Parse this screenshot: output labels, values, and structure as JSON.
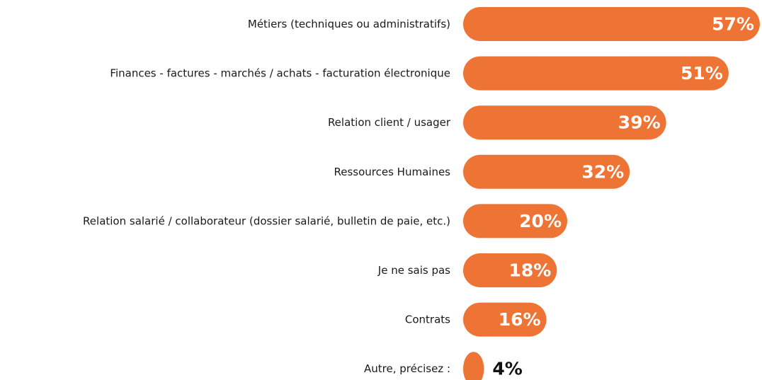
{
  "chart_data": {
    "type": "bar",
    "orientation": "horizontal",
    "categories": [
      "Métiers (techniques ou administratifs)",
      "Finances - factures - marchés / achats - facturation électronique",
      "Relation client / usager",
      "Ressources Humaines",
      "Relation salarié / collaborateur (dossier salarié, bulletin de paie, etc.)",
      "Je ne sais pas",
      "Contrats",
      "Autre, précisez :"
    ],
    "values": [
      57,
      51,
      39,
      32,
      20,
      18,
      16,
      4
    ],
    "value_labels": [
      "57%",
      "51%",
      "39%",
      "32%",
      "20%",
      "18%",
      "16%",
      "4%"
    ],
    "color": "#ee7435"
  }
}
